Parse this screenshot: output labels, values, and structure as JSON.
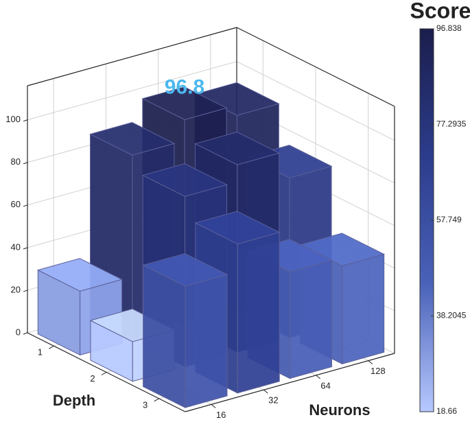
{
  "chart_data": {
    "type": "bar3d",
    "title": "Score",
    "xlabel": "Neurons",
    "ylabel": "Depth",
    "categories": [
      "16",
      "32",
      "64",
      "128"
    ],
    "depth_categories": [
      "1",
      "2",
      "3"
    ],
    "values": [
      [
        30,
        87,
        96.84,
        92
      ],
      [
        18.66,
        80,
        88,
        75
      ],
      [
        57,
        70,
        50,
        46
      ]
    ],
    "annotation": "96.8",
    "annotation_color": "#4db8ef",
    "zlim": [
      0,
      116
    ],
    "zticks": [
      0,
      20,
      40,
      60,
      80,
      100
    ],
    "clim": [
      18.66,
      96.838
    ],
    "cticks": [
      18.66,
      38.2045,
      57.749,
      77.2935,
      96.838
    ],
    "colormap": [
      "#b7c9ff",
      "#4a62b8",
      "#2c3c8c",
      "#1b1e4c"
    ],
    "grid": true
  }
}
